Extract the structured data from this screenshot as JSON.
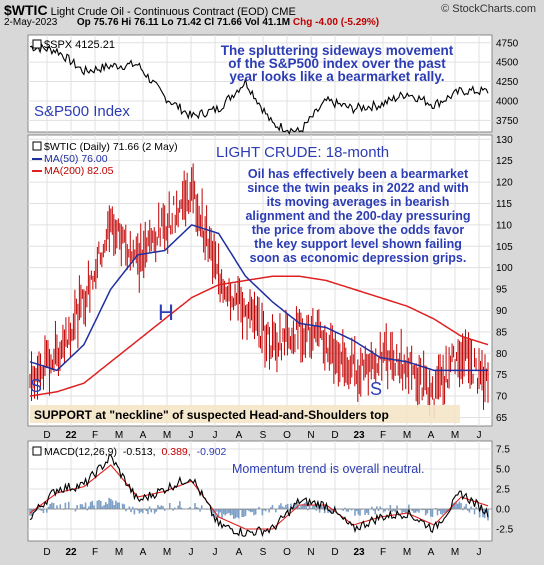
{
  "header": {
    "symbol": "$WTIC",
    "name": "Light Crude Oil - Continuous Contract (EOD)",
    "exchange": "CME",
    "brand": "© StockCharts.com",
    "date": "2-May-2023",
    "open": "Op 75.76",
    "high": "Hi 76.11",
    "low": "Lo 71.42",
    "close": "Cl 71.66",
    "volume": "Vol 41.1M",
    "change": "Chg -4.00 (-5.29%)"
  },
  "panels": {
    "spx": {
      "legend": "$SPX 4125.21",
      "label": "S&P500 Index",
      "annotation": [
        "The spluttering sideways movement",
        "of the S&P500 index over the past",
        "year looks like a bearmarket rally."
      ],
      "y_ticks": [
        "4750",
        "4500",
        "4250",
        "4000",
        "3750"
      ]
    },
    "price": {
      "legend": "$WTIC (Daily) 71.66 (2 May)",
      "ma50": "MA(50) 76.00",
      "ma200": "MA(200) 82.05",
      "title": "LIGHT CRUDE: 18-month",
      "annotation": [
        "Oil has effectively been a bearmarket",
        "since the twin peaks in 2022 and with",
        "its moving averages in bearish",
        "alignment and the 200-day pressuring",
        "the price from above the odds favor",
        "the key support level shown failing",
        "soon as economic depression grips."
      ],
      "labels": {
        "left_shoulder": "S",
        "head": "H",
        "right_shoulder": "S"
      },
      "support": "SUPPORT at \"neckline\" of suspected Head-and-Shoulders top",
      "y_ticks": [
        "130",
        "125",
        "120",
        "115",
        "110",
        "105",
        "100",
        "95",
        "90",
        "85",
        "80",
        "75",
        "70",
        "65"
      ]
    },
    "macd": {
      "legend_name": "MACD(12,26,9)",
      "legend_macd": "-0.513,",
      "legend_signal": "0.389,",
      "legend_hist": "-0.902",
      "annotation": "Momentum trend is overall neutral.",
      "y_ticks": [
        "7.5",
        "5.0",
        "2.5",
        "0.0",
        "-2.5"
      ]
    }
  },
  "x_labels": [
    "D",
    "22",
    "F",
    "M",
    "A",
    "M",
    "J",
    "J",
    "A",
    "S",
    "O",
    "N",
    "D",
    "23",
    "F",
    "M",
    "A",
    "M",
    "J"
  ],
  "colors": {
    "price": "#c00000",
    "ma50": "#1f2fa0",
    "ma200": "#e02020",
    "macd": "#000000",
    "signal": "#e02020",
    "hist": "#7da0c8",
    "text": "#2c3cb4",
    "support_bg": "#f5e6c8"
  },
  "chart_data": [
    {
      "type": "line",
      "name": "S&P500",
      "x": [
        "2021-12",
        "2022-01",
        "2022-02",
        "2022-03",
        "2022-04",
        "2022-05",
        "2022-06",
        "2022-07",
        "2022-08",
        "2022-09",
        "2022-10",
        "2022-11",
        "2022-12",
        "2023-01",
        "2023-02",
        "2023-03",
        "2023-04",
        "2023-05"
      ],
      "values": [
        4700,
        4650,
        4380,
        4450,
        4470,
        4050,
        3800,
        3900,
        4250,
        3700,
        3600,
        4000,
        3900,
        3950,
        4100,
        3950,
        4130,
        4125
      ],
      "ylim": [
        3600,
        4850
      ]
    },
    {
      "type": "line",
      "name": "$WTIC",
      "x": [
        "2021-12",
        "2022-01",
        "2022-02",
        "2022-03",
        "2022-04",
        "2022-05",
        "2022-06",
        "2022-07",
        "2022-08",
        "2022-09",
        "2022-10",
        "2022-11",
        "2022-12",
        "2023-01",
        "2023-02",
        "2023-03",
        "2023-04",
        "2023-05"
      ],
      "values": [
        73,
        80,
        92,
        110,
        102,
        110,
        118,
        98,
        90,
        82,
        86,
        82,
        76,
        79,
        77,
        70,
        81,
        71.7
      ],
      "ma50": [
        78,
        76,
        82,
        95,
        103,
        104,
        110,
        108,
        98,
        92,
        87,
        86,
        83,
        79,
        78,
        76,
        76,
        76
      ],
      "ma200": [
        70,
        71,
        73,
        78,
        83,
        88,
        93,
        96,
        97,
        98,
        98,
        97,
        95,
        93,
        91,
        88,
        84,
        82
      ],
      "ylim": [
        63,
        131
      ]
    },
    {
      "type": "line",
      "name": "MACD",
      "x": [
        "2021-12",
        "2022-01",
        "2022-02",
        "2022-03",
        "2022-04",
        "2022-05",
        "2022-06",
        "2022-07",
        "2022-08",
        "2022-09",
        "2022-10",
        "2022-11",
        "2022-12",
        "2023-01",
        "2023-02",
        "2023-03",
        "2023-04",
        "2023-05"
      ],
      "macd": [
        -1,
        2.5,
        3,
        6.5,
        1,
        2.5,
        4,
        -2,
        -3,
        -2.5,
        1,
        0.5,
        -2.5,
        -1,
        -0.5,
        -2.5,
        2,
        -0.5
      ],
      "signal": [
        -0.5,
        2,
        2.8,
        5.5,
        1.5,
        2.2,
        3.5,
        -1,
        -2.5,
        -2.5,
        0.5,
        0.5,
        -2,
        -1,
        -0.5,
        -2,
        1.5,
        0.4
      ],
      "ylim": [
        -4,
        8.5
      ]
    }
  ]
}
